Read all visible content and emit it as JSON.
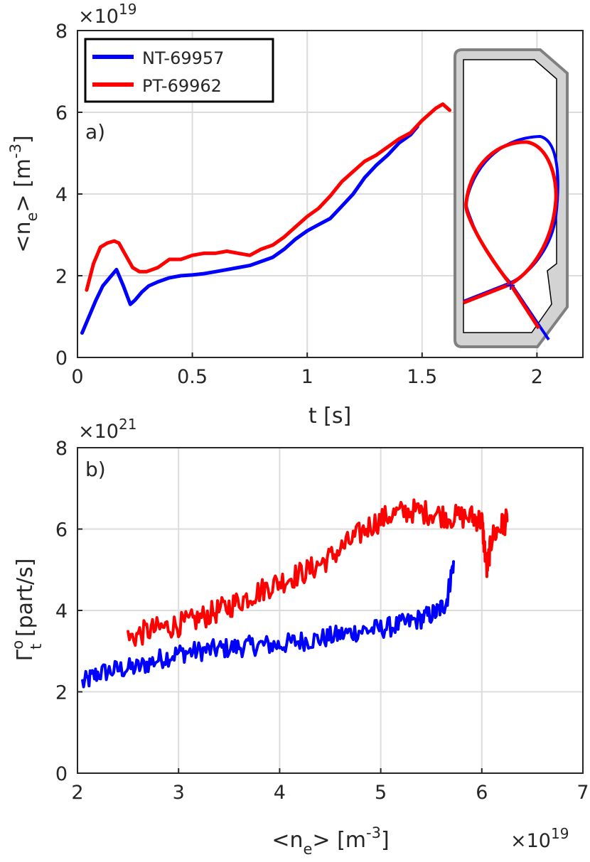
{
  "chart_data": [
    {
      "id": "a",
      "type": "line",
      "panel_label": "a)",
      "xlabel": "t [s]",
      "ylabel": "<n_e> [m^-3]",
      "ylabel_parts": {
        "main": "<n",
        "sub": "e",
        "post": "> [m",
        "sup": "-3",
        "end": "]"
      },
      "y_exponent": {
        "base": "×10",
        "exp": "19"
      },
      "xlim": [
        0,
        2.2
      ],
      "ylim": [
        0,
        8
      ],
      "xticks": [
        0,
        0.5,
        1,
        1.5,
        2
      ],
      "xtick_labels": [
        "0",
        "0.5",
        "1",
        "1.5",
        "2"
      ],
      "yticks": [
        0,
        2,
        4,
        6,
        8
      ],
      "ytick_labels": [
        "0",
        "2",
        "4",
        "6",
        "8"
      ],
      "grid": true,
      "legend": {
        "placement": "top-left",
        "entries": [
          "NT-69957",
          "PT-69962"
        ]
      },
      "series": [
        {
          "name": "NT-69957",
          "color": "#0000ff",
          "x": [
            0.02,
            0.05,
            0.08,
            0.11,
            0.14,
            0.17,
            0.2,
            0.23,
            0.25,
            0.28,
            0.31,
            0.35,
            0.4,
            0.45,
            0.5,
            0.55,
            0.6,
            0.65,
            0.7,
            0.75,
            0.8,
            0.85,
            0.9,
            0.95,
            1.0,
            1.05,
            1.1,
            1.15,
            1.2,
            1.25,
            1.3,
            1.35,
            1.4,
            1.45,
            1.48
          ],
          "y": [
            0.6,
            1.0,
            1.4,
            1.75,
            1.95,
            2.15,
            1.75,
            1.3,
            1.4,
            1.6,
            1.75,
            1.85,
            1.95,
            2.0,
            2.02,
            2.05,
            2.1,
            2.15,
            2.2,
            2.25,
            2.35,
            2.45,
            2.65,
            2.9,
            3.1,
            3.25,
            3.4,
            3.7,
            4.0,
            4.4,
            4.7,
            4.95,
            5.25,
            5.45,
            5.65
          ]
        },
        {
          "name": "PT-69962",
          "color": "#ff0000",
          "x": [
            0.04,
            0.07,
            0.1,
            0.13,
            0.16,
            0.18,
            0.21,
            0.24,
            0.27,
            0.3,
            0.35,
            0.4,
            0.45,
            0.5,
            0.55,
            0.6,
            0.65,
            0.7,
            0.75,
            0.8,
            0.85,
            0.9,
            0.95,
            1.0,
            1.05,
            1.1,
            1.15,
            1.2,
            1.25,
            1.3,
            1.35,
            1.4,
            1.45,
            1.5,
            1.53,
            1.56,
            1.59,
            1.62
          ],
          "y": [
            1.65,
            2.3,
            2.7,
            2.8,
            2.85,
            2.8,
            2.5,
            2.2,
            2.1,
            2.1,
            2.2,
            2.4,
            2.4,
            2.5,
            2.55,
            2.55,
            2.6,
            2.55,
            2.5,
            2.65,
            2.75,
            2.95,
            3.2,
            3.45,
            3.65,
            3.95,
            4.3,
            4.55,
            4.8,
            4.95,
            5.15,
            5.35,
            5.5,
            5.8,
            5.95,
            6.1,
            6.2,
            6.05
          ]
        }
      ],
      "inset": {
        "description": "plasma cross-section inset",
        "marks": [
          "+"
        ]
      }
    },
    {
      "id": "b",
      "type": "line",
      "panel_label": "b)",
      "xlabel": "<n_e> [m^-3]",
      "xlabel_parts": {
        "main": "<n",
        "sub": "e",
        "post": "> [m",
        "sup": "-3",
        "end": "]"
      },
      "ylabel": "Γ_t^o [part/s]",
      "ylabel_parts": {
        "main": "Γ",
        "sup": "o",
        "sub": "t",
        "post": " [part/s]"
      },
      "y_exponent": {
        "base": "×10",
        "exp": "21"
      },
      "x_exponent": {
        "base": "×10",
        "exp": "19"
      },
      "xlim": [
        2,
        7
      ],
      "ylim": [
        0,
        8
      ],
      "xticks": [
        2,
        3,
        4,
        5,
        6,
        7
      ],
      "xtick_labels": [
        "2",
        "3",
        "4",
        "5",
        "6",
        "7"
      ],
      "yticks": [
        0,
        2,
        4,
        6,
        8
      ],
      "ytick_labels": [
        "0",
        "2",
        "4",
        "6",
        "8"
      ],
      "grid": true,
      "series": [
        {
          "name": "NT-69957",
          "color": "#0000ff",
          "x": [
            2.05,
            2.2,
            2.4,
            2.6,
            2.8,
            3.0,
            3.2,
            3.4,
            3.6,
            3.8,
            4.0,
            4.2,
            4.4,
            4.6,
            4.8,
            5.0,
            5.2,
            5.4,
            5.55,
            5.65,
            5.72
          ],
          "y": [
            2.2,
            2.45,
            2.55,
            2.6,
            2.8,
            2.95,
            3.0,
            3.05,
            3.1,
            3.15,
            3.15,
            3.25,
            3.3,
            3.4,
            3.5,
            3.55,
            3.65,
            3.8,
            3.95,
            4.2,
            5.2
          ],
          "noise": 0.25
        },
        {
          "name": "PT-69962",
          "color": "#ff0000",
          "x": [
            2.5,
            2.7,
            2.9,
            3.1,
            3.3,
            3.5,
            3.7,
            3.9,
            4.1,
            4.3,
            4.5,
            4.7,
            4.9,
            5.1,
            5.3,
            5.5,
            5.7,
            5.9,
            6.0,
            6.05,
            6.1,
            6.2,
            6.25
          ],
          "y": [
            3.3,
            3.5,
            3.6,
            3.7,
            3.9,
            4.1,
            4.35,
            4.6,
            4.8,
            5.0,
            5.3,
            5.7,
            6.1,
            6.35,
            6.45,
            6.4,
            6.3,
            6.3,
            6.2,
            5.0,
            5.8,
            6.1,
            6.2
          ],
          "noise": 0.3
        }
      ]
    }
  ]
}
